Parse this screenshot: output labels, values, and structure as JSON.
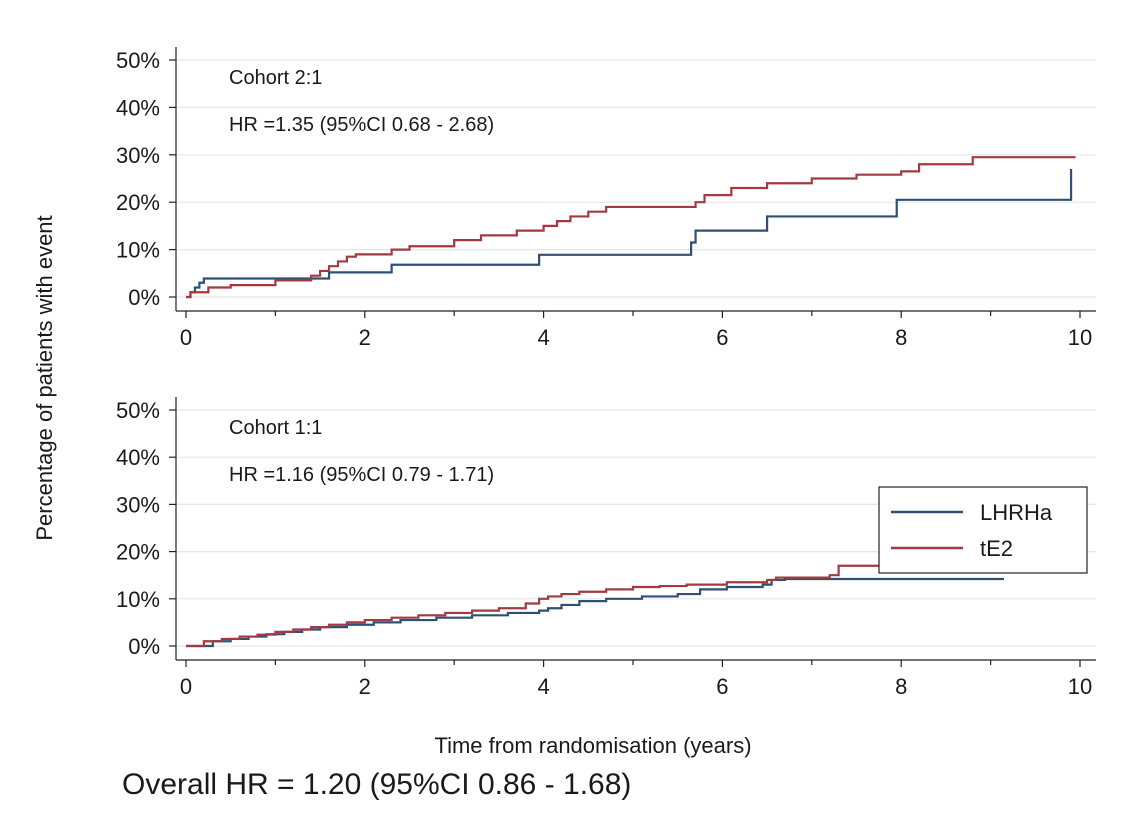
{
  "figure": {
    "ylabel": "Percentage of patients with event",
    "xlabel": "Time from randomisation (years)",
    "overall": "Overall HR = 1.20 (95%CI 0.86 - 1.68)"
  },
  "colors": {
    "LHRHa": "#2e5077",
    "tE2": "#a33a3f",
    "grid": "#e6e6e6",
    "axis": "#222222"
  },
  "chart_data": [
    {
      "type": "line",
      "step": "post",
      "title": "",
      "annotations": [
        "Cohort 2:1",
        "HR =1.35 (95%CI 0.68 - 2.68)"
      ],
      "xlim": [
        0,
        10
      ],
      "ylim": [
        0,
        50
      ],
      "xticks": [
        0,
        2,
        4,
        6,
        8,
        10
      ],
      "yticks": [
        0,
        10,
        20,
        30,
        40,
        50
      ],
      "ytick_labels": [
        "0%",
        "10%",
        "20%",
        "30%",
        "40%",
        "50%"
      ],
      "xtick_labels": [
        "0",
        "2",
        "4",
        "6",
        "8",
        "10"
      ],
      "grid": true,
      "legend": "none",
      "series": [
        {
          "name": "LHRHa",
          "x": [
            0,
            0.05,
            0.1,
            0.15,
            0.2,
            1.6,
            2.3,
            3.95,
            5.65,
            5.7,
            6.5,
            7.95,
            9.9,
            9.9
          ],
          "y": [
            0,
            1,
            2,
            3,
            3.9,
            5.2,
            6.8,
            8.9,
            11.5,
            14,
            17,
            20.5,
            27,
            27
          ]
        },
        {
          "name": "tE2",
          "x": [
            0,
            0.05,
            0.25,
            0.5,
            1.0,
            1.4,
            1.5,
            1.6,
            1.7,
            1.8,
            1.9,
            2.3,
            2.5,
            3.0,
            3.3,
            3.7,
            4.0,
            4.15,
            4.3,
            4.5,
            4.7,
            5.7,
            5.8,
            6.1,
            6.5,
            7.0,
            7.5,
            8.0,
            8.2,
            8.8,
            9.95
          ],
          "y": [
            0,
            1,
            2,
            2.5,
            3.5,
            4.5,
            5.5,
            6.5,
            7.5,
            8.5,
            9,
            10,
            10.7,
            12,
            13,
            14,
            15,
            16,
            17,
            18,
            19,
            20,
            21.5,
            23,
            24,
            25,
            25.8,
            26.5,
            28,
            29.5,
            29.5
          ]
        }
      ]
    },
    {
      "type": "line",
      "step": "post",
      "title": "",
      "annotations": [
        "Cohort 1:1",
        "HR =1.16 (95%CI 0.79 - 1.71)"
      ],
      "xlim": [
        0,
        10
      ],
      "ylim": [
        0,
        50
      ],
      "xticks": [
        0,
        2,
        4,
        6,
        8,
        10
      ],
      "yticks": [
        0,
        10,
        20,
        30,
        40,
        50
      ],
      "ytick_labels": [
        "0%",
        "10%",
        "20%",
        "30%",
        "40%",
        "50%"
      ],
      "xtick_labels": [
        "0",
        "2",
        "4",
        "6",
        "8",
        "10"
      ],
      "grid": true,
      "legend": "right",
      "series": [
        {
          "name": "LHRHa",
          "x": [
            0,
            0.3,
            0.5,
            0.7,
            0.9,
            1.1,
            1.3,
            1.5,
            1.8,
            2.1,
            2.4,
            2.8,
            3.2,
            3.6,
            3.95,
            4.05,
            4.2,
            4.4,
            4.7,
            5.1,
            5.5,
            5.75,
            6.05,
            6.45,
            6.55,
            6.7,
            7.3,
            8.0,
            9.15
          ],
          "y": [
            0,
            1,
            1.5,
            2,
            2.5,
            3,
            3.5,
            4,
            4.5,
            5,
            5.5,
            6,
            6.5,
            7,
            7.5,
            8,
            8.7,
            9.5,
            10,
            10.5,
            11,
            12,
            12.5,
            13,
            14,
            14.2,
            14.2,
            14.2,
            14.2
          ]
        },
        {
          "name": "tE2",
          "x": [
            0,
            0.2,
            0.4,
            0.6,
            0.8,
            1.0,
            1.2,
            1.4,
            1.6,
            1.8,
            2.0,
            2.3,
            2.6,
            2.9,
            3.2,
            3.5,
            3.8,
            3.95,
            4.05,
            4.2,
            4.4,
            4.7,
            5.0,
            5.3,
            5.6,
            6.05,
            6.5,
            6.6,
            7.2,
            7.3,
            8.0,
            8.5
          ],
          "y": [
            0,
            1,
            1.5,
            2,
            2.4,
            3,
            3.5,
            4,
            4.5,
            5,
            5.5,
            6,
            6.5,
            7,
            7.5,
            8,
            9,
            10,
            10.5,
            11,
            11.5,
            12,
            12.5,
            12.7,
            13,
            13.5,
            14,
            14.5,
            15,
            17,
            17.5,
            17.5
          ]
        }
      ]
    }
  ]
}
